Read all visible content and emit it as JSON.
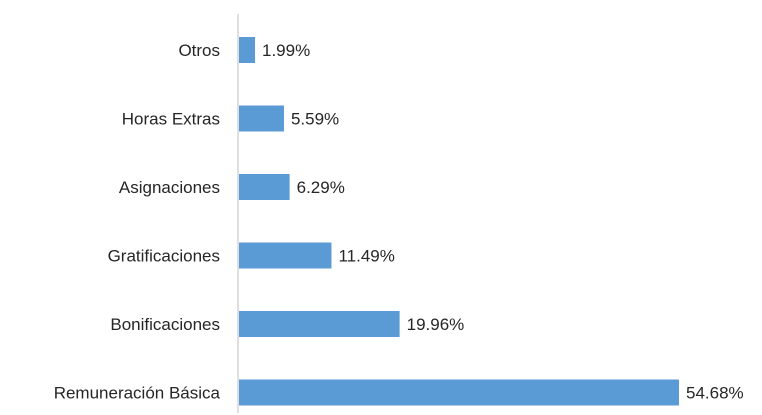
{
  "chart_data": {
    "type": "bar",
    "orientation": "horizontal",
    "categories": [
      "Otros",
      "Horas Extras",
      "Asignaciones",
      "Gratificaciones",
      "Bonificaciones",
      "Remuneración Básica"
    ],
    "values": [
      1.99,
      5.59,
      6.29,
      11.49,
      19.96,
      54.68
    ],
    "value_labels": [
      "1.99%",
      "5.59%",
      "6.29%",
      "11.49%",
      "19.96%",
      "54.68%"
    ],
    "xlim": [
      0,
      54.68
    ],
    "grid": false,
    "legend": "none",
    "colors": {
      "bar": "#5B9BD5",
      "axis": "#BFBFBF",
      "text": "#262626"
    }
  }
}
